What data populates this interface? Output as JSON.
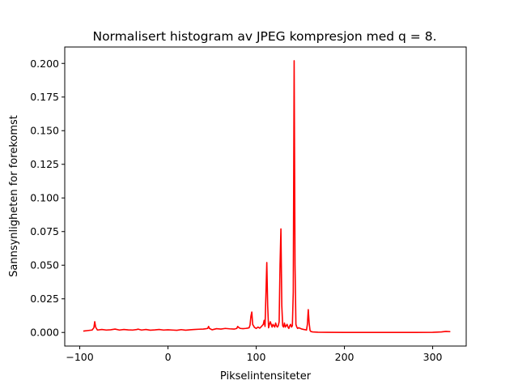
{
  "chart_data": {
    "type": "line",
    "title": "Normalisert histogram av JPEG kompresjon med q = 8.",
    "xlabel": "Pikselintensiteter",
    "ylabel": "Sannsynligheten for forekomst",
    "xlim": [
      -117,
      338
    ],
    "ylim": [
      -0.0101,
      0.2122
    ],
    "xticks": [
      -100,
      0,
      100,
      200,
      300
    ],
    "yticks": [
      0.0,
      0.025,
      0.05,
      0.075,
      0.1,
      0.125,
      0.15,
      0.175,
      0.2
    ],
    "xtick_labels": [
      "−100",
      "0",
      "100",
      "200",
      "300"
    ],
    "ytick_labels": [
      "0.000",
      "0.025",
      "0.050",
      "0.075",
      "0.100",
      "0.125",
      "0.150",
      "0.175",
      "0.200"
    ],
    "grid": false,
    "series": [
      {
        "color": "#ff0000",
        "x": [
          -96,
          -90,
          -86,
          -84,
          -83,
          -82,
          -80,
          -75,
          -70,
          -65,
          -60,
          -55,
          -50,
          -45,
          -40,
          -35,
          -34,
          -30,
          -25,
          -20,
          -15,
          -10,
          -5,
          0,
          5,
          10,
          15,
          20,
          25,
          30,
          35,
          40,
          45,
          46,
          47,
          50,
          55,
          60,
          65,
          70,
          75,
          78,
          79,
          80,
          82,
          85,
          88,
          90,
          92,
          93,
          94,
          95,
          96,
          98,
          100,
          102,
          104,
          106,
          108,
          109,
          110,
          111,
          112,
          113,
          114,
          115,
          116,
          117,
          118,
          119,
          120,
          121,
          122,
          123,
          124,
          125,
          126,
          127,
          128,
          129,
          130,
          131,
          132,
          133,
          134,
          135,
          136,
          137,
          138,
          139,
          140,
          141,
          142,
          143,
          144,
          145,
          146,
          147,
          148,
          150,
          152,
          154,
          156,
          157,
          158,
          159,
          160,
          161,
          162,
          164,
          170,
          180,
          200,
          220,
          240,
          260,
          280,
          300,
          310,
          315,
          320
        ],
        "y": [
          0.001,
          0.0015,
          0.0018,
          0.0035,
          0.008,
          0.004,
          0.0018,
          0.0022,
          0.0018,
          0.002,
          0.0025,
          0.0018,
          0.0022,
          0.0019,
          0.0018,
          0.0022,
          0.0025,
          0.0018,
          0.0022,
          0.0017,
          0.0019,
          0.0022,
          0.0018,
          0.002,
          0.0018,
          0.0016,
          0.0021,
          0.0017,
          0.002,
          0.0022,
          0.0024,
          0.0025,
          0.003,
          0.0045,
          0.003,
          0.002,
          0.0028,
          0.0025,
          0.003,
          0.0027,
          0.0025,
          0.003,
          0.0045,
          0.0038,
          0.003,
          0.0028,
          0.003,
          0.0032,
          0.0035,
          0.0055,
          0.012,
          0.0152,
          0.006,
          0.0038,
          0.003,
          0.004,
          0.0032,
          0.0045,
          0.006,
          0.009,
          0.0045,
          0.028,
          0.052,
          0.02,
          0.0035,
          0.006,
          0.008,
          0.006,
          0.004,
          0.006,
          0.005,
          0.004,
          0.007,
          0.005,
          0.004,
          0.005,
          0.008,
          0.05,
          0.077,
          0.02,
          0.005,
          0.004,
          0.007,
          0.004,
          0.005,
          0.006,
          0.004,
          0.003,
          0.005,
          0.006,
          0.004,
          0.005,
          0.03,
          0.202,
          0.05,
          0.006,
          0.004,
          0.003,
          0.0035,
          0.003,
          0.0025,
          0.0022,
          0.002,
          0.0018,
          0.006,
          0.017,
          0.007,
          0.0015,
          0.0007,
          0.0004,
          0.0002,
          0.0001,
          0.0,
          0.0,
          0.0,
          0.0,
          0.0,
          0.0001,
          0.0004,
          0.0008,
          0.0006
        ]
      }
    ]
  }
}
